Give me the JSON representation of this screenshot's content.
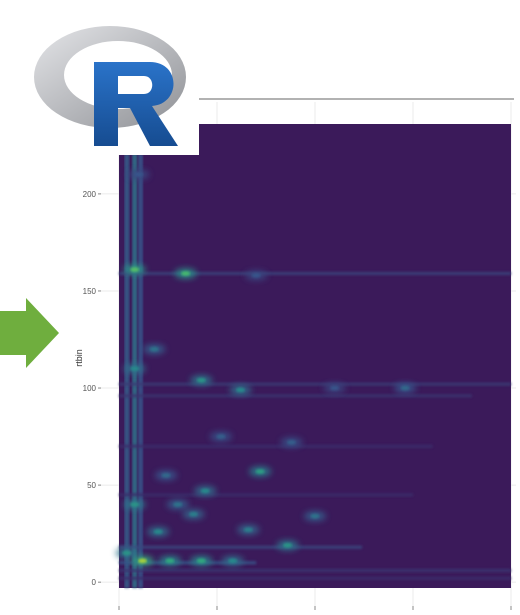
{
  "logo": {
    "name": "R",
    "colors": {
      "ring_light": "#d9dadd",
      "ring_dark": "#8e9095",
      "letter": "#1f63b8",
      "letter_dark": "#164c91"
    }
  },
  "arrow": {
    "icon": "right-arrow-icon",
    "color": "#6fae3e"
  },
  "chart_data": {
    "type": "heatmap",
    "title": "",
    "xlabel": "",
    "ylabel": "rtbin",
    "ylim": [
      -3,
      236
    ],
    "yticks": [
      0,
      50,
      100,
      150,
      200
    ],
    "xlim": [
      0,
      100
    ],
    "x_tick_positions": [
      0,
      25,
      50,
      75,
      100
    ],
    "grid": true,
    "legend": "none",
    "colormap": "viridis",
    "colors": {
      "background": "#3b1a5a",
      "mid": "#2f6f8e",
      "high": "#34b679",
      "peak": "#e8e419",
      "grid": "#ebebeb",
      "frame": "#666666"
    },
    "features": {
      "vertical_streaks": [
        {
          "x": 2,
          "intensity": 0.35
        },
        {
          "x": 4,
          "intensity": 0.45
        },
        {
          "x": 5.5,
          "intensity": 0.3
        }
      ],
      "horizontal_bands": [
        {
          "y": 159,
          "x_end": 100,
          "intensity": 0.2
        },
        {
          "y": 102,
          "x_end": 100,
          "intensity": 0.16
        },
        {
          "y": 96,
          "x_end": 90,
          "intensity": 0.13
        },
        {
          "y": 70,
          "x_end": 80,
          "intensity": 0.1
        },
        {
          "y": 45,
          "x_end": 75,
          "intensity": 0.1
        },
        {
          "y": 18,
          "x_end": 62,
          "intensity": 0.22
        },
        {
          "y": 10,
          "x_end": 35,
          "intensity": 0.28
        },
        {
          "y": 6,
          "x_end": 100,
          "intensity": 0.14
        },
        {
          "y": 2,
          "x_end": 100,
          "intensity": 0.1
        }
      ],
      "peaks": [
        {
          "x": 4,
          "y": 161,
          "intensity": 0.8
        },
        {
          "x": 17,
          "y": 159,
          "intensity": 0.78
        },
        {
          "x": 4,
          "y": 110,
          "intensity": 0.55
        },
        {
          "x": 9,
          "y": 120,
          "intensity": 0.45
        },
        {
          "x": 21,
          "y": 104,
          "intensity": 0.6
        },
        {
          "x": 31,
          "y": 99,
          "intensity": 0.55
        },
        {
          "x": 44,
          "y": 72,
          "intensity": 0.35
        },
        {
          "x": 36,
          "y": 57,
          "intensity": 0.65
        },
        {
          "x": 22,
          "y": 47,
          "intensity": 0.55
        },
        {
          "x": 15,
          "y": 40,
          "intensity": 0.45
        },
        {
          "x": 4,
          "y": 40,
          "intensity": 0.6
        },
        {
          "x": 19,
          "y": 35,
          "intensity": 0.5
        },
        {
          "x": 33,
          "y": 27,
          "intensity": 0.5
        },
        {
          "x": 50,
          "y": 34,
          "intensity": 0.45
        },
        {
          "x": 43,
          "y": 19,
          "intensity": 0.6
        },
        {
          "x": 10,
          "y": 26,
          "intensity": 0.55
        },
        {
          "x": 6,
          "y": 11,
          "intensity": 0.92
        },
        {
          "x": 13,
          "y": 11,
          "intensity": 0.7
        },
        {
          "x": 21,
          "y": 11,
          "intensity": 0.7
        },
        {
          "x": 29,
          "y": 11,
          "intensity": 0.55
        },
        {
          "x": 2,
          "y": 15,
          "intensity": 0.6
        },
        {
          "x": 73,
          "y": 100,
          "intensity": 0.4
        },
        {
          "x": 55,
          "y": 100,
          "intensity": 0.3
        },
        {
          "x": 35,
          "y": 158,
          "intensity": 0.3
        },
        {
          "x": 5,
          "y": 210,
          "intensity": 0.3
        },
        {
          "x": 12,
          "y": 55,
          "intensity": 0.4
        },
        {
          "x": 26,
          "y": 75,
          "intensity": 0.35
        }
      ]
    }
  }
}
